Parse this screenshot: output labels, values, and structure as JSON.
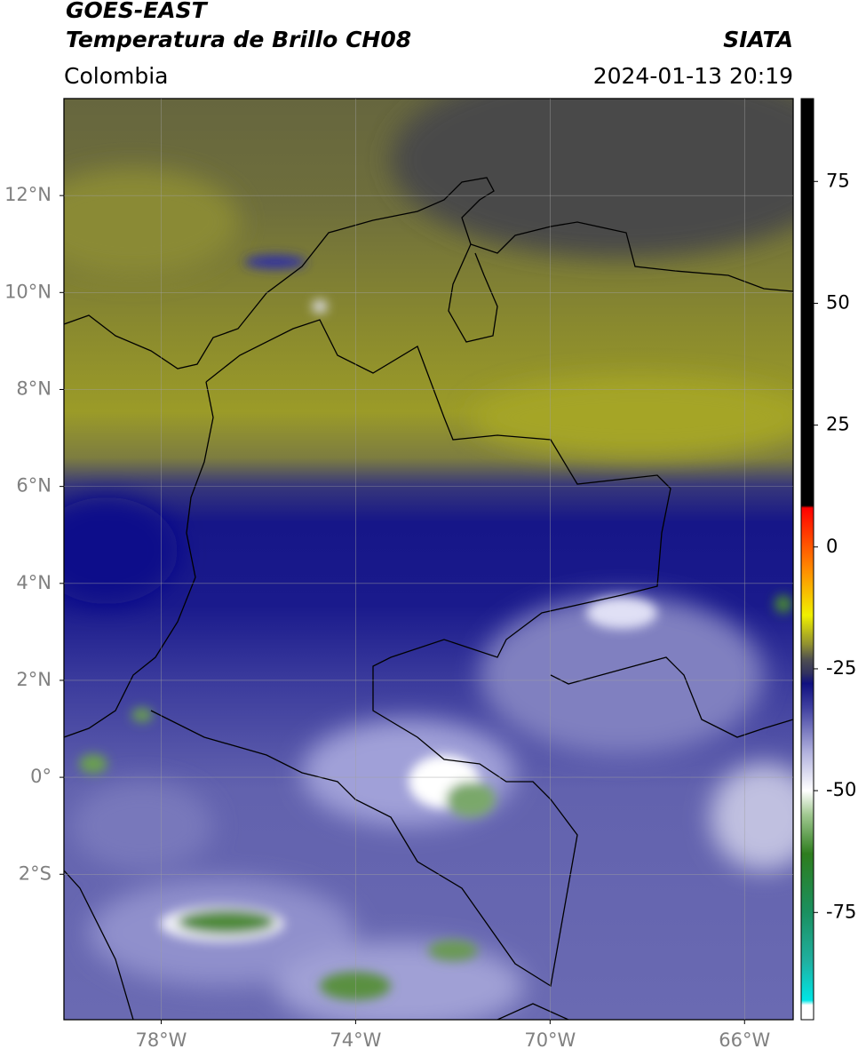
{
  "header": {
    "title": "GOES-EAST",
    "subtitle": "Temperatura de Brillo CH08",
    "source": "SIATA",
    "region": "Colombia",
    "datetime": "2024-01-13 20:19"
  },
  "map": {
    "xlim": [
      -80,
      -65
    ],
    "ylim": [
      -5,
      14
    ],
    "xticks": [
      {
        "value": -78,
        "label": "78°W"
      },
      {
        "value": -74,
        "label": "74°W"
      },
      {
        "value": -70,
        "label": "70°W"
      },
      {
        "value": -66,
        "label": "66°W"
      }
    ],
    "yticks": [
      {
        "value": 12,
        "label": "12°N"
      },
      {
        "value": 10,
        "label": "10°N"
      },
      {
        "value": 8,
        "label": "8°N"
      },
      {
        "value": 6,
        "label": "6°N"
      },
      {
        "value": 4,
        "label": "4°N"
      },
      {
        "value": 2,
        "label": "2°N"
      },
      {
        "value": 0,
        "label": "0°"
      },
      {
        "value": -2,
        "label": "2°S"
      }
    ],
    "grid": true
  },
  "colorbar": {
    "range": [
      -97,
      92
    ],
    "ticks": [
      75,
      50,
      25,
      0,
      -25,
      -50,
      -75
    ],
    "stops": [
      {
        "value": -97,
        "color": "#ffffff"
      },
      {
        "value": -94,
        "color": "#ffffff"
      },
      {
        "value": -93,
        "color": "#00e5e5"
      },
      {
        "value": -85,
        "color": "#20b0a0"
      },
      {
        "value": -75,
        "color": "#1a9060"
      },
      {
        "value": -63,
        "color": "#2e7d1e"
      },
      {
        "value": -55,
        "color": "#a0c890"
      },
      {
        "value": -50,
        "color": "#ffffff"
      },
      {
        "value": -42,
        "color": "#b0b0dd"
      },
      {
        "value": -33,
        "color": "#4040a0"
      },
      {
        "value": -28,
        "color": "#101080"
      },
      {
        "value": -26,
        "color": "#303060"
      },
      {
        "value": -23,
        "color": "#505050"
      },
      {
        "value": -20,
        "color": "#909030"
      },
      {
        "value": -14,
        "color": "#f0f000"
      },
      {
        "value": -5,
        "color": "#ff9000"
      },
      {
        "value": 8,
        "color": "#ff0000"
      },
      {
        "value": 8.5,
        "color": "#000000"
      },
      {
        "value": 92,
        "color": "#000000"
      }
    ]
  }
}
